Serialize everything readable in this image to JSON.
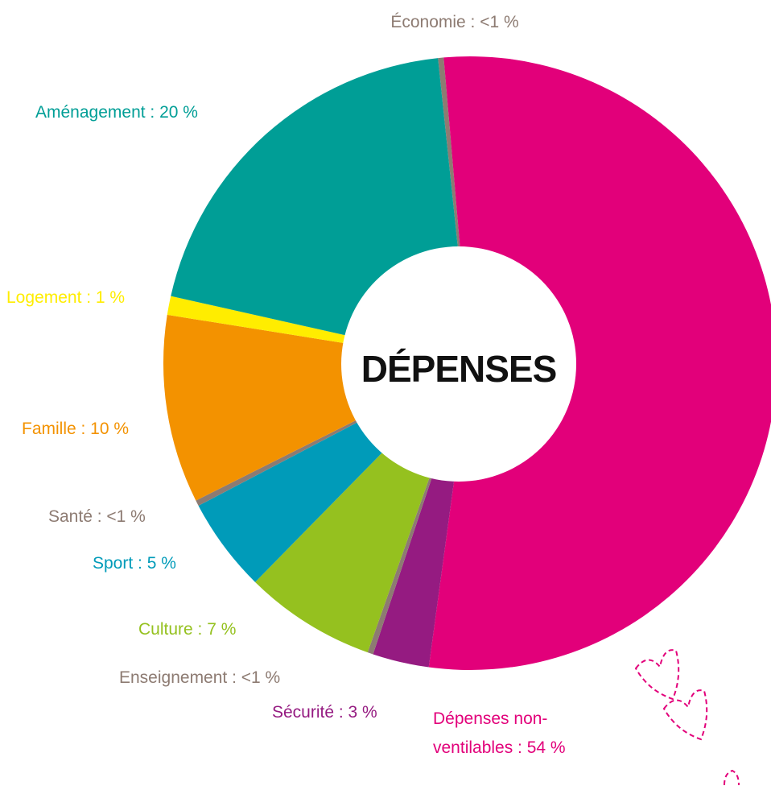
{
  "chart_data": {
    "type": "donut",
    "center_label": "DÉPENSES",
    "labels": [
      "Économie : <1 %",
      "Dépenses non-ventilables : 54 %",
      "Sécurité : 3 %",
      "Enseignement : <1 %",
      "Culture : 7 %",
      "Sport : 5 %",
      "Santé : <1 %",
      "Famille : 10 %",
      "Logement : 1 %",
      "Aménagement : 20 %"
    ],
    "values": [
      0.3,
      54,
      3,
      0.3,
      7,
      5,
      0.3,
      10,
      1,
      20
    ],
    "colors": [
      "#8d7b72",
      "#e2007a",
      "#951b81",
      "#8d7b72",
      "#95c11f",
      "#009bb9",
      "#8d7b72",
      "#f39200",
      "#ffed00",
      "#009e96"
    ],
    "label_colors": [
      "#8d7b72",
      "#e2007a",
      "#951b81",
      "#8d7b72",
      "#95c11f",
      "#009bb9",
      "#8d7b72",
      "#f39200",
      "#ffed00",
      "#009e96"
    ]
  }
}
